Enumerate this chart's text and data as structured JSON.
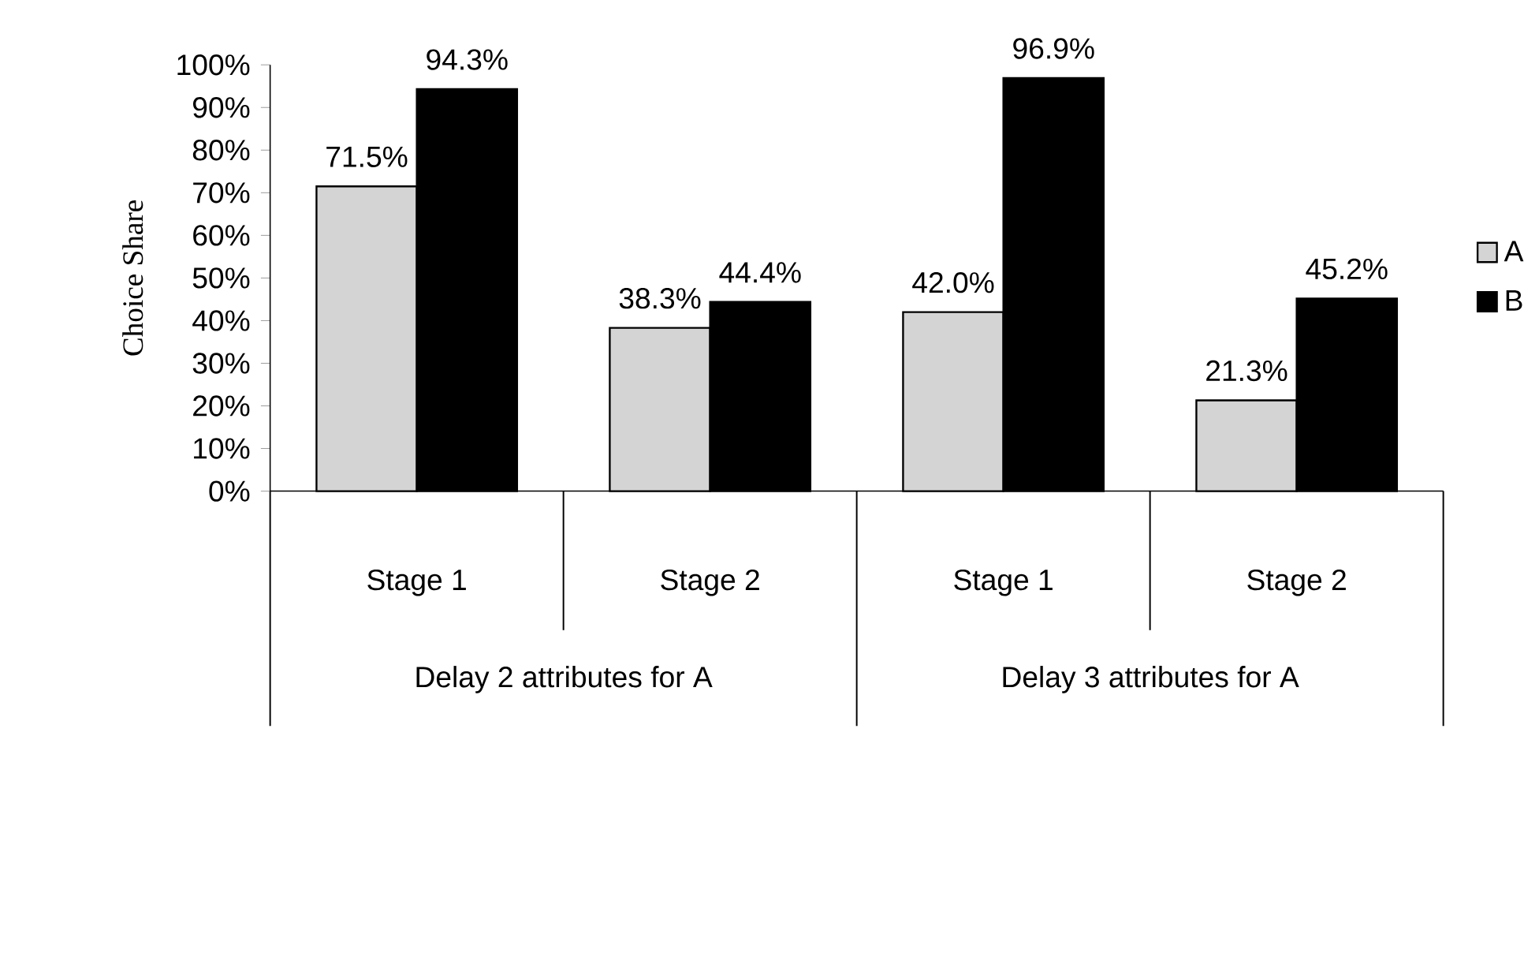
{
  "chart_data": {
    "type": "bar",
    "ylabel": "Choice Share",
    "categories": [
      "Stage 1",
      "Stage 2",
      "Stage 1",
      "Stage 2"
    ],
    "annotations": [
      "Delay 2 attributes for A",
      "Delay 3 attributes for A"
    ],
    "series": [
      {
        "name": "A",
        "color": "#d4d4d4",
        "values": [
          71.5,
          38.3,
          42.0,
          21.3
        ],
        "value_labels": [
          "71.5%",
          "38.3%",
          "42.0%",
          "21.3%"
        ]
      },
      {
        "name": "B",
        "color": "#000000",
        "values": [
          94.3,
          44.4,
          96.9,
          45.2
        ],
        "value_labels": [
          "94.3%",
          "44.4%",
          "96.9%",
          "45.2%"
        ]
      }
    ],
    "ylim": [
      0,
      100
    ],
    "yticks": [
      {
        "value": 0,
        "label": "0%"
      },
      {
        "value": 10,
        "label": "10%"
      },
      {
        "value": 20,
        "label": "20%"
      },
      {
        "value": 30,
        "label": "30%"
      },
      {
        "value": 40,
        "label": "40%"
      },
      {
        "value": 50,
        "label": "50%"
      },
      {
        "value": 60,
        "label": "60%"
      },
      {
        "value": 70,
        "label": "70%"
      },
      {
        "value": 80,
        "label": "80%"
      },
      {
        "value": 90,
        "label": "90%"
      },
      {
        "value": 100,
        "label": "100%"
      }
    ],
    "legend": "right"
  }
}
